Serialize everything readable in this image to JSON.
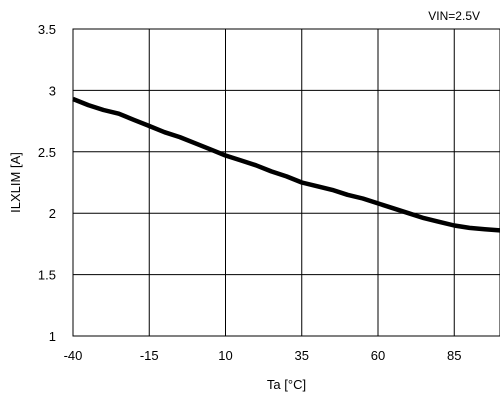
{
  "chart_data": {
    "type": "line",
    "title": "",
    "annotation": "VIN=2.5V",
    "xlabel": "Ta [°C]",
    "ylabel": "ILXLIM [A]",
    "xlim": [
      -40,
      100
    ],
    "ylim": [
      1,
      3.5
    ],
    "x_ticks": [
      -40,
      -15,
      10,
      35,
      60,
      85
    ],
    "x_tick_labels": [
      "-40",
      "-15",
      "10",
      "35",
      "60",
      "85"
    ],
    "y_ticks": [
      1,
      1.5,
      2,
      2.5,
      3,
      3.5
    ],
    "y_tick_labels": [
      "1",
      "1.5",
      "2",
      "2.5",
      "3",
      "3.5"
    ],
    "grid": true,
    "series": [
      {
        "name": "",
        "color": "#000000",
        "x": [
          -40,
          -35,
          -30,
          -25,
          -20,
          -15,
          -10,
          -5,
          0,
          5,
          10,
          15,
          20,
          25,
          30,
          35,
          40,
          45,
          50,
          55,
          60,
          65,
          70,
          75,
          80,
          85,
          90,
          95,
          100
        ],
        "y": [
          2.93,
          2.88,
          2.84,
          2.81,
          2.76,
          2.71,
          2.66,
          2.62,
          2.57,
          2.52,
          2.47,
          2.43,
          2.39,
          2.34,
          2.3,
          2.25,
          2.22,
          2.19,
          2.15,
          2.12,
          2.08,
          2.04,
          2.0,
          1.96,
          1.93,
          1.9,
          1.88,
          1.87,
          1.86
        ]
      }
    ]
  }
}
